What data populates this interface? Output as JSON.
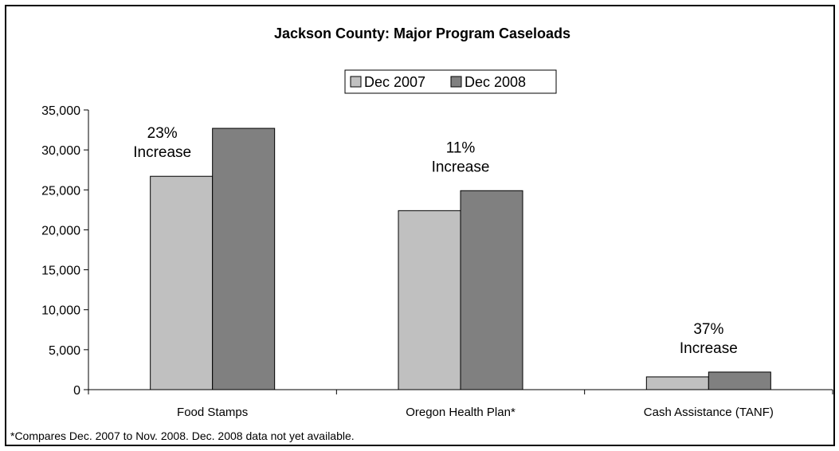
{
  "chart_data": {
    "type": "bar",
    "title": "Jackson County: Major Program Caseloads",
    "xlabel": "",
    "ylabel": "",
    "categories": [
      "Food Stamps",
      "Oregon Health Plan*",
      "Cash Assistance (TANF)"
    ],
    "series": [
      {
        "name": "Dec 2007",
        "values": [
          26700,
          22400,
          1600
        ],
        "color": "#c0c0c0"
      },
      {
        "name": "Dec 2008",
        "values": [
          32700,
          24900,
          2200
        ],
        "color": "#808080"
      }
    ],
    "ylim": [
      0,
      35000
    ],
    "yticks": [
      "0",
      "5,000",
      "10,000",
      "15,000",
      "20,000",
      "25,000",
      "30,000",
      "35,000"
    ],
    "annotations": [
      {
        "line1": "23%",
        "line2": "Increase",
        "category": "Food Stamps"
      },
      {
        "line1": "11%",
        "line2": "Increase",
        "category": "Oregon Health Plan*"
      },
      {
        "line1": "37%",
        "line2": "Increase",
        "category": "Cash Assistance (TANF)"
      }
    ],
    "legend": "top-center",
    "grid": false,
    "footnote": "*Compares Dec. 2007 to Nov. 2008.  Dec. 2008 data not yet available."
  }
}
